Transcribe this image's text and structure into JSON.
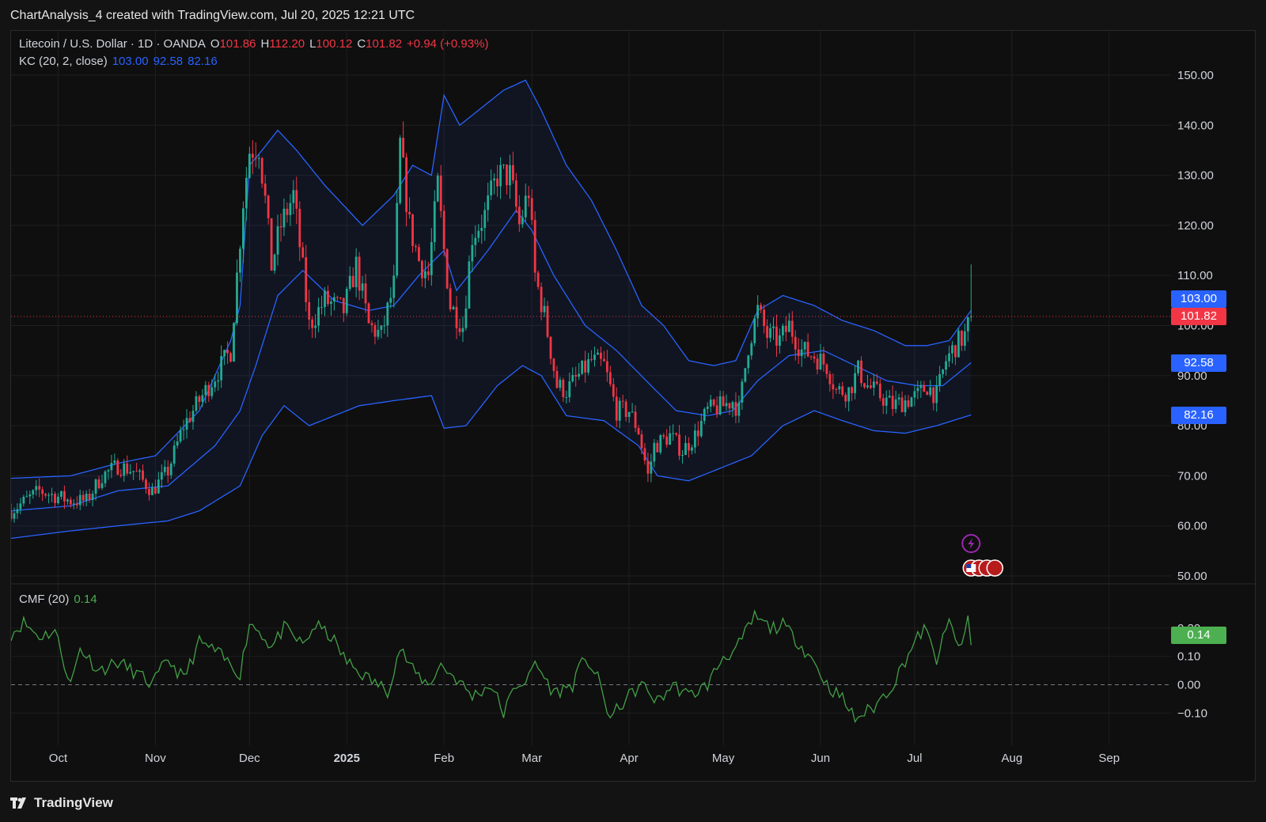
{
  "header": {
    "attribution": "ChartAnalysis_4 created with TradingView.com, Jul 20, 2025 12:21 UTC"
  },
  "legend": {
    "symbol": "Litecoin / U.S. Dollar · 1D · OANDA",
    "o_label": "O",
    "o_value": "101.86",
    "h_label": "H",
    "h_value": "112.20",
    "l_label": "L",
    "l_value": "100.12",
    "c_label": "C",
    "c_value": "101.82",
    "change": "+0.94 (+0.93%)",
    "kc_label": "KC (20, 2, close)",
    "kc_upper": "103.00",
    "kc_mid": "92.58",
    "kc_lower": "82.16",
    "cmf_label": "CMF (20)",
    "cmf_value": "0.14"
  },
  "badges": {
    "kc_upper": "103.00",
    "last_price": "101.82",
    "kc_mid": "92.58",
    "kc_lower": "82.16",
    "cmf": "0.14"
  },
  "footer": {
    "brand": "TradingView"
  },
  "colors": {
    "up": "#22ab94",
    "down": "#f23645",
    "band": "#2962ff",
    "cmf": "#43a047"
  },
  "chart_data": [
    {
      "type": "candlestick",
      "title": "Litecoin / U.S. Dollar · 1D · OANDA",
      "x_tick_labels": [
        "Oct",
        "Nov",
        "Dec",
        "2025",
        "Feb",
        "Mar",
        "Apr",
        "May",
        "Jun",
        "Jul",
        "Aug",
        "Sep"
      ],
      "y_tick_labels": [
        "150.00",
        "140.00",
        "130.00",
        "120.00",
        "110.00",
        "100.00",
        "90.00",
        "80.00",
        "70.00",
        "60.00",
        "50.00"
      ],
      "ylim": [
        50,
        150
      ],
      "last_close": 101.82,
      "x_start": "2024-09-16",
      "close_anchors": [
        [
          "2024-09-16",
          63
        ],
        [
          "2024-09-25",
          67
        ],
        [
          "2024-09-30",
          66
        ],
        [
          "2024-10-05",
          65
        ],
        [
          "2024-10-10",
          65
        ],
        [
          "2024-10-15",
          70
        ],
        [
          "2024-10-20",
          72
        ],
        [
          "2024-10-25",
          71
        ],
        [
          "2024-10-31",
          67
        ],
        [
          "2024-11-05",
          71
        ],
        [
          "2024-11-10",
          80
        ],
        [
          "2024-11-15",
          85
        ],
        [
          "2024-11-20",
          90
        ],
        [
          "2024-11-25",
          95
        ],
        [
          "2024-11-29",
          125
        ],
        [
          "2024-12-01",
          135
        ],
        [
          "2024-12-04",
          136
        ],
        [
          "2024-12-06",
          125
        ],
        [
          "2024-12-08",
          112
        ],
        [
          "2024-12-11",
          120
        ],
        [
          "2024-12-15",
          126
        ],
        [
          "2024-12-18",
          111
        ],
        [
          "2024-12-20",
          100
        ],
        [
          "2024-12-25",
          105
        ],
        [
          "2024-12-31",
          103
        ],
        [
          "2025-01-04",
          112
        ],
        [
          "2025-01-08",
          100
        ],
        [
          "2025-01-12",
          98
        ],
        [
          "2025-01-16",
          108
        ],
        [
          "2025-01-18",
          136
        ],
        [
          "2025-01-21",
          120
        ],
        [
          "2025-01-24",
          113
        ],
        [
          "2025-01-27",
          110
        ],
        [
          "2025-01-30",
          128
        ],
        [
          "2025-02-01",
          115
        ],
        [
          "2025-02-03",
          104
        ],
        [
          "2025-02-07",
          100
        ],
        [
          "2025-02-10",
          118
        ],
        [
          "2025-02-14",
          122
        ],
        [
          "2025-02-18",
          130
        ],
        [
          "2025-02-22",
          130
        ],
        [
          "2025-02-25",
          120
        ],
        [
          "2025-02-28",
          127
        ],
        [
          "2025-03-02",
          110
        ],
        [
          "2025-03-05",
          102
        ],
        [
          "2025-03-09",
          88
        ],
        [
          "2025-03-12",
          87
        ],
        [
          "2025-03-16",
          90
        ],
        [
          "2025-03-20",
          93
        ],
        [
          "2025-03-24",
          92
        ],
        [
          "2025-03-28",
          83
        ],
        [
          "2025-04-01",
          83
        ],
        [
          "2025-04-04",
          79
        ],
        [
          "2025-04-07",
          70
        ],
        [
          "2025-04-09",
          76
        ],
        [
          "2025-04-14",
          78
        ],
        [
          "2025-04-18",
          75
        ],
        [
          "2025-04-22",
          78
        ],
        [
          "2025-04-26",
          83
        ],
        [
          "2025-05-01",
          84
        ],
        [
          "2025-05-04",
          85
        ],
        [
          "2025-05-06",
          83
        ],
        [
          "2025-05-09",
          96
        ],
        [
          "2025-05-12",
          103
        ],
        [
          "2025-05-15",
          98
        ],
        [
          "2025-05-19",
          97
        ],
        [
          "2025-05-22",
          100
        ],
        [
          "2025-05-26",
          95
        ],
        [
          "2025-05-30",
          94
        ],
        [
          "2025-06-03",
          92
        ],
        [
          "2025-06-06",
          87
        ],
        [
          "2025-06-10",
          87
        ],
        [
          "2025-06-13",
          91
        ],
        [
          "2025-06-16",
          88
        ],
        [
          "2025-06-20",
          86
        ],
        [
          "2025-06-24",
          84
        ],
        [
          "2025-06-28",
          85
        ],
        [
          "2025-07-02",
          86
        ],
        [
          "2025-07-05",
          88
        ],
        [
          "2025-07-08",
          86
        ],
        [
          "2025-07-11",
          93
        ],
        [
          "2025-07-14",
          96
        ],
        [
          "2025-07-17",
          98
        ],
        [
          "2025-07-19",
          101.82
        ]
      ],
      "kc_upper_anchors": [
        [
          "2024-09-16",
          69.5
        ],
        [
          "2024-10-05",
          70
        ],
        [
          "2024-10-20",
          72.5
        ],
        [
          "2024-11-01",
          74
        ],
        [
          "2024-11-15",
          83
        ],
        [
          "2024-11-25",
          97
        ],
        [
          "2024-11-28",
          104
        ],
        [
          "2024-12-01",
          132
        ],
        [
          "2024-12-05",
          135
        ],
        [
          "2024-12-10",
          139
        ],
        [
          "2024-12-16",
          135
        ],
        [
          "2024-12-25",
          128
        ],
        [
          "2025-01-06",
          120
        ],
        [
          "2025-01-16",
          126
        ],
        [
          "2025-01-22",
          132
        ],
        [
          "2025-01-28",
          130
        ],
        [
          "2025-02-01",
          146
        ],
        [
          "2025-02-06",
          140
        ],
        [
          "2025-02-12",
          143
        ],
        [
          "2025-02-20",
          147
        ],
        [
          "2025-02-27",
          149
        ],
        [
          "2025-03-04",
          143
        ],
        [
          "2025-03-12",
          132
        ],
        [
          "2025-03-20",
          125
        ],
        [
          "2025-03-28",
          115
        ],
        [
          "2025-04-05",
          104
        ],
        [
          "2025-04-12",
          100
        ],
        [
          "2025-04-20",
          93
        ],
        [
          "2025-04-28",
          92
        ],
        [
          "2025-05-05",
          93
        ],
        [
          "2025-05-12",
          103
        ],
        [
          "2025-05-20",
          106
        ],
        [
          "2025-05-30",
          104
        ],
        [
          "2025-06-08",
          101
        ],
        [
          "2025-06-18",
          99
        ],
        [
          "2025-06-28",
          96
        ],
        [
          "2025-07-05",
          96
        ],
        [
          "2025-07-12",
          97
        ],
        [
          "2025-07-19",
          103
        ]
      ],
      "kc_mid_anchors": [
        [
          "2024-09-16",
          63
        ],
        [
          "2024-10-05",
          64
        ],
        [
          "2024-10-20",
          67
        ],
        [
          "2024-11-05",
          68
        ],
        [
          "2024-11-20",
          76
        ],
        [
          "2024-11-28",
          83
        ],
        [
          "2024-12-03",
          92
        ],
        [
          "2024-12-10",
          106
        ],
        [
          "2024-12-18",
          111
        ],
        [
          "2024-12-28",
          105
        ],
        [
          "2025-01-08",
          103
        ],
        [
          "2025-01-16",
          104
        ],
        [
          "2025-01-24",
          110
        ],
        [
          "2025-02-01",
          115
        ],
        [
          "2025-02-05",
          107
        ],
        [
          "2025-02-15",
          115
        ],
        [
          "2025-02-24",
          123
        ],
        [
          "2025-03-01",
          119
        ],
        [
          "2025-03-08",
          110
        ],
        [
          "2025-03-18",
          100
        ],
        [
          "2025-03-28",
          95
        ],
        [
          "2025-04-08",
          88
        ],
        [
          "2025-04-16",
          83
        ],
        [
          "2025-04-26",
          82
        ],
        [
          "2025-05-04",
          83
        ],
        [
          "2025-05-12",
          89
        ],
        [
          "2025-05-22",
          94
        ],
        [
          "2025-06-02",
          95
        ],
        [
          "2025-06-12",
          92
        ],
        [
          "2025-06-22",
          89
        ],
        [
          "2025-07-02",
          88
        ],
        [
          "2025-07-10",
          88
        ],
        [
          "2025-07-19",
          92.58
        ]
      ],
      "kc_lower_anchors": [
        [
          "2024-09-16",
          57.5
        ],
        [
          "2024-10-05",
          59
        ],
        [
          "2024-10-20",
          60
        ],
        [
          "2024-11-05",
          61
        ],
        [
          "2024-11-15",
          63
        ],
        [
          "2024-11-28",
          68
        ],
        [
          "2024-12-05",
          78
        ],
        [
          "2024-12-12",
          84
        ],
        [
          "2024-12-20",
          80
        ],
        [
          "2025-01-05",
          84
        ],
        [
          "2025-01-16",
          85
        ],
        [
          "2025-01-28",
          86
        ],
        [
          "2025-02-01",
          79.5
        ],
        [
          "2025-02-08",
          80
        ],
        [
          "2025-02-18",
          88
        ],
        [
          "2025-02-26",
          92
        ],
        [
          "2025-03-04",
          90
        ],
        [
          "2025-03-12",
          82
        ],
        [
          "2025-03-24",
          81
        ],
        [
          "2025-04-04",
          76
        ],
        [
          "2025-04-10",
          70
        ],
        [
          "2025-04-20",
          69
        ],
        [
          "2025-04-30",
          71.5
        ],
        [
          "2025-05-10",
          74
        ],
        [
          "2025-05-20",
          80
        ],
        [
          "2025-05-30",
          83
        ],
        [
          "2025-06-08",
          81
        ],
        [
          "2025-06-18",
          79
        ],
        [
          "2025-06-28",
          78.5
        ],
        [
          "2025-07-08",
          80
        ],
        [
          "2025-07-19",
          82.16
        ]
      ]
    },
    {
      "type": "line",
      "title": "CMF (20)",
      "y_tick_labels": [
        "0.20",
        "0.10",
        "0.00",
        "−0.10"
      ],
      "ylim": [
        -0.13,
        0.25
      ],
      "last_value": 0.14,
      "anchors": [
        [
          "2024-09-16",
          0.18
        ],
        [
          "2024-09-20",
          0.22
        ],
        [
          "2024-09-25",
          0.17
        ],
        [
          "2024-09-30",
          0.19
        ],
        [
          "2024-10-05",
          0.0
        ],
        [
          "2024-10-08",
          0.13
        ],
        [
          "2024-10-14",
          0.05
        ],
        [
          "2024-10-20",
          0.08
        ],
        [
          "2024-10-26",
          0.04
        ],
        [
          "2024-10-31",
          0.0
        ],
        [
          "2024-11-05",
          0.09
        ],
        [
          "2024-11-10",
          0.02
        ],
        [
          "2024-11-15",
          0.15
        ],
        [
          "2024-11-20",
          0.12
        ],
        [
          "2024-11-25",
          0.07
        ],
        [
          "2024-11-28",
          0.04
        ],
        [
          "2024-12-01",
          0.22
        ],
        [
          "2024-12-05",
          0.18
        ],
        [
          "2024-12-08",
          0.13
        ],
        [
          "2024-12-12",
          0.2
        ],
        [
          "2024-12-18",
          0.14
        ],
        [
          "2024-12-22",
          0.21
        ],
        [
          "2024-12-27",
          0.17
        ],
        [
          "2025-01-01",
          0.08
        ],
        [
          "2025-01-08",
          0.02
        ],
        [
          "2025-01-14",
          -0.02
        ],
        [
          "2025-01-18",
          0.13
        ],
        [
          "2025-01-22",
          0.05
        ],
        [
          "2025-01-27",
          0.0
        ],
        [
          "2025-01-31",
          0.07
        ],
        [
          "2025-02-05",
          0.02
        ],
        [
          "2025-02-10",
          -0.04
        ],
        [
          "2025-02-16",
          0.0
        ],
        [
          "2025-02-20",
          -0.1
        ],
        [
          "2025-02-24",
          0.0
        ],
        [
          "2025-02-28",
          0.02
        ],
        [
          "2025-03-02",
          0.08
        ],
        [
          "2025-03-08",
          -0.03
        ],
        [
          "2025-03-14",
          0.0
        ],
        [
          "2025-03-18",
          0.1
        ],
        [
          "2025-03-22",
          0.02
        ],
        [
          "2025-03-26",
          -0.12
        ],
        [
          "2025-03-31",
          -0.05
        ],
        [
          "2025-04-05",
          0.0
        ],
        [
          "2025-04-10",
          -0.06
        ],
        [
          "2025-04-15",
          0.0
        ],
        [
          "2025-04-20",
          -0.04
        ],
        [
          "2025-04-26",
          0.0
        ],
        [
          "2025-05-01",
          0.1
        ],
        [
          "2025-05-05",
          0.12
        ],
        [
          "2025-05-11",
          0.24
        ],
        [
          "2025-05-16",
          0.2
        ],
        [
          "2025-05-20",
          0.21
        ],
        [
          "2025-05-25",
          0.15
        ],
        [
          "2025-05-30",
          0.08
        ],
        [
          "2025-06-03",
          0.0
        ],
        [
          "2025-06-08",
          -0.05
        ],
        [
          "2025-06-12",
          -0.12
        ],
        [
          "2025-06-18",
          -0.08
        ],
        [
          "2025-06-24",
          0.0
        ],
        [
          "2025-06-30",
          0.13
        ],
        [
          "2025-07-04",
          0.2
        ],
        [
          "2025-07-08",
          0.09
        ],
        [
          "2025-07-12",
          0.22
        ],
        [
          "2025-07-16",
          0.12
        ],
        [
          "2025-07-18",
          0.24
        ],
        [
          "2025-07-19",
          0.14
        ]
      ]
    }
  ]
}
